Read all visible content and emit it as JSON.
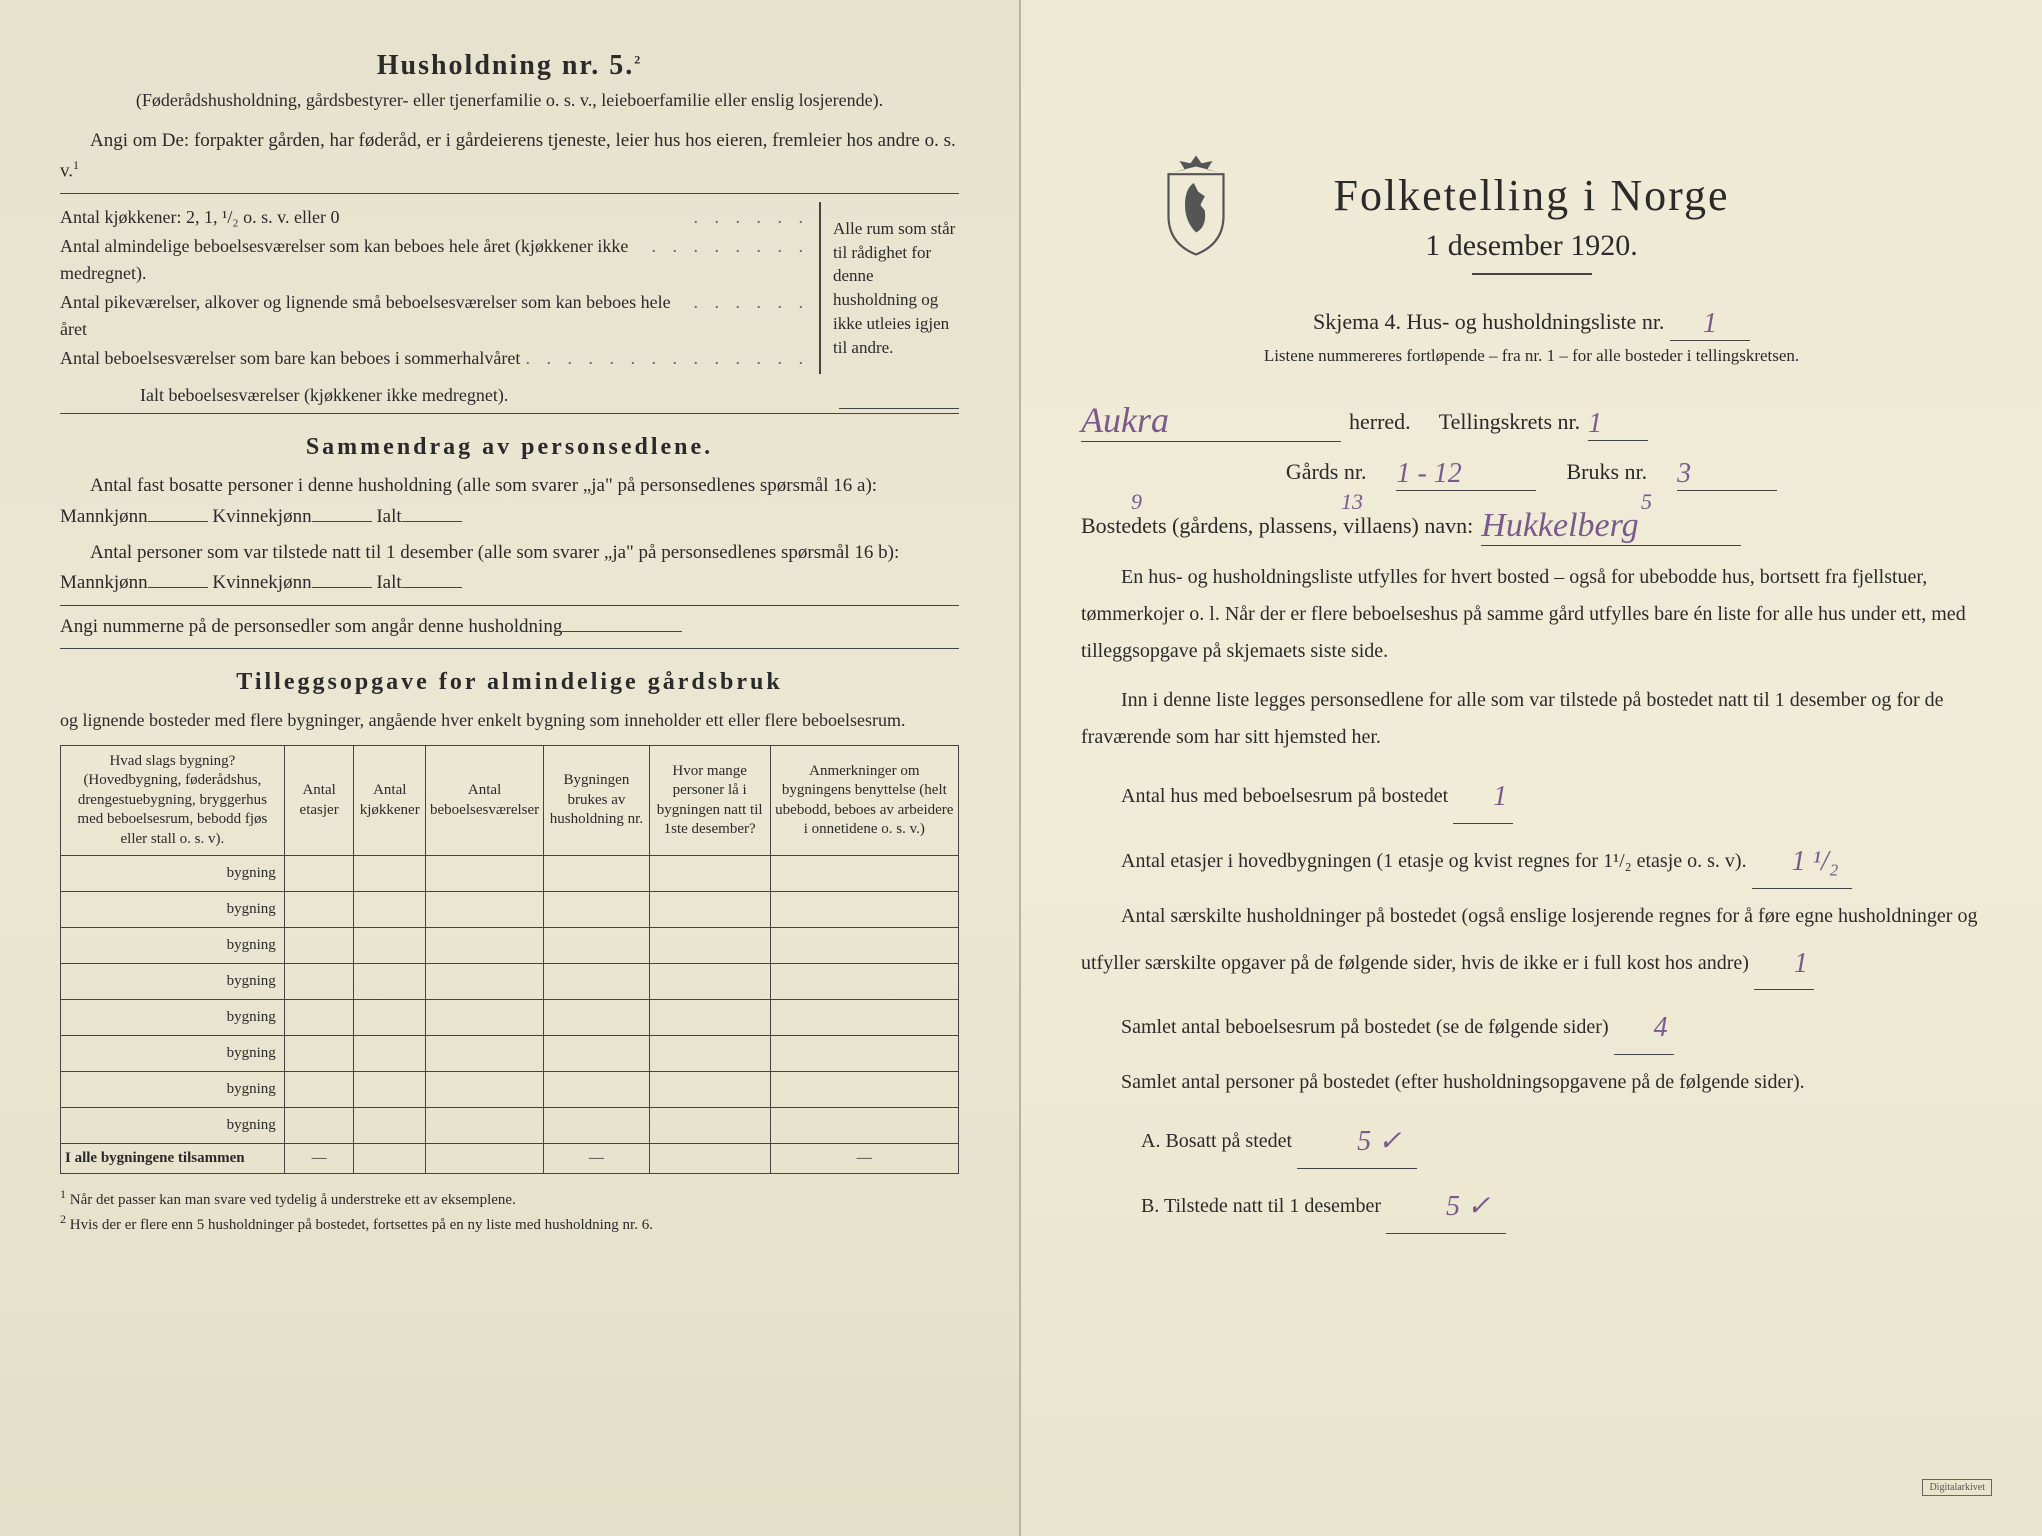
{
  "left": {
    "heading": "Husholdning nr. 5.",
    "heading_sup": "2",
    "sub1": "(Føderådshusholdning, gårdsbestyrer- eller tjenerfamilie o. s. v., leieboerfamilie eller enslig losjerende).",
    "para1": "Angi om De: forpakter gården, har føderåd, er i gårdeierens tjeneste, leier hus hos eieren, fremleier hos andre o. s. v.",
    "para1_sup": "1",
    "brace_items": [
      "Antal kjøkkener: 2, 1, ¹/₂ o. s. v. eller 0",
      "Antal almindelige beboelsesværelser som kan beboes hele året (kjøkkener ikke medregnet).",
      "Antal pikeværelser, alkover og lignende små beboelsesværelser som kan beboes hele året",
      "Antal beboelsesværelser som bare kan beboes i sommerhalvåret"
    ],
    "brace_right": "Alle rum som står til rådighet for denne husholdning og ikke utleies igjen til andre.",
    "ialt_line": "Ialt beboelsesværelser (kjøkkener ikke medregnet).",
    "sammendrag_heading": "Sammendrag av personsedlene.",
    "sammendrag_p1a": "Antal fast bosatte personer i denne husholdning (alle som svarer „ja\" på personsedlenes spørsmål 16 a): Mannkjønn",
    "sammendrag_p1b": "Kvinnekjønn",
    "sammendrag_p1c": "Ialt",
    "sammendrag_p2a": "Antal personer som var tilstede natt til 1 desember (alle som svarer „ja\" på personsedlenes spørsmål 16 b): Mannkjønn",
    "sammendrag_p2b": "Kvinnekjønn",
    "sammendrag_p2c": "Ialt",
    "angi_line": "Angi nummerne på de personsedler som angår denne husholdning",
    "tillegg_heading": "Tilleggsopgave for almindelige gårdsbruk",
    "tillegg_sub": "og lignende bosteder med flere bygninger, angående hver enkelt bygning som inneholder ett eller flere beboelsesrum.",
    "table": {
      "headers": [
        "Hvad slags bygning?\n(Hovedbygning, føderådshus, drengestuebygning, bryggerhus med beboelsesrum, bebodd fjøs eller stall o. s. v).",
        "Antal etasjer",
        "Antal kjøkkener",
        "Antal beboelsesværelser",
        "Bygningen brukes av husholdning nr.",
        "Hvor mange personer lå i bygningen natt til 1ste desember?",
        "Anmerkninger om bygningens benyttelse (helt ubebodd, beboes av arbeidere i onnetidene o. s. v.)"
      ],
      "row_label": "bygning",
      "row_count": 8,
      "footer_label": "I alle bygningene tilsammen"
    },
    "footnote1": "Når det passer kan man svare ved tydelig å understreke ett av eksemplene.",
    "footnote2": "Hvis der er flere enn 5 husholdninger på bostedet, fortsettes på en ny liste med husholdning nr. 6."
  },
  "right": {
    "title": "Folketelling i Norge",
    "subtitle": "1 desember 1920.",
    "skjema": "Skjema 4.  Hus- og husholdningsliste nr.",
    "skjema_val": "1",
    "listene": "Listene nummereres fortløpende – fra nr. 1 – for alle bosteder i tellingskretsen.",
    "herred_val": "Aukra",
    "herred_label": "herred.",
    "tellingskrets": "Tellingskrets nr.",
    "tellingskrets_val": "1",
    "gards": "Gårds nr.",
    "gards_val": "1 - 12",
    "bruks": "Bruks nr.",
    "bruks_val": "3",
    "annot1": "9",
    "annot2": "13",
    "annot3": "5",
    "bosted": "Bostedets (gårdens, plassens, villaens) navn:",
    "bosted_val": "Hukkelberg",
    "para1": "En hus- og husholdningsliste utfylles for hvert bosted – også for ubebodde hus, bortsett fra fjellstuer, tømmerkojer o. l. Når der er flere beboelseshus på samme gård utfylles bare én liste for alle hus under ett, med tilleggsopgave på skjemaets siste side.",
    "para2": "Inn i denne liste legges personsedlene for alle som var tilstede på bostedet natt til 1 desember og for de fraværende som har sitt hjemsted her.",
    "antal_hus": "Antal hus med beboelsesrum på bostedet",
    "antal_hus_val": "1",
    "antal_etasjer": "Antal etasjer i hovedbygningen (1 etasje og kvist regnes for 1¹/₂ etasje o. s. v).",
    "antal_etasjer_val": "1 ¹/₂",
    "antal_hush": "Antal særskilte husholdninger på bostedet (også enslige losjerende regnes for å føre egne husholdninger og utfyller særskilte opgaver på de følgende sider, hvis de ikke er i full kost hos andre)",
    "antal_hush_val": "1",
    "samlet_rum": "Samlet antal beboelsesrum på bostedet (se de følgende sider)",
    "samlet_rum_val": "4",
    "samlet_pers": "Samlet antal personer på bostedet (efter husholdningsopgavene på de følgende sider).",
    "bosatt_a": "A.  Bosatt på stedet",
    "bosatt_a_val": "5 ✓",
    "bosatt_b": "B.  Tilstede natt til 1 desember",
    "bosatt_b_val": "5 ✓",
    "stamp": "Digitalarkivet"
  },
  "colors": {
    "text": "#2a2a2a",
    "handwriting": "#7a5a8a",
    "paper_left": "#e6e2ce",
    "paper_right": "#ede9d5"
  }
}
